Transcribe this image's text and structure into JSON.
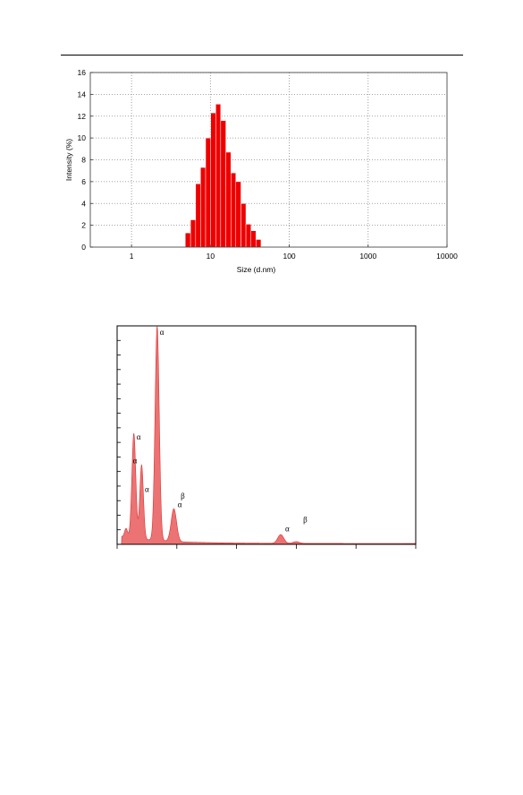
{
  "chart_data": [
    {
      "type": "bar",
      "xlabel": "Size (d.nm)",
      "ylabel": "Intensity (%)",
      "x_scale": "log",
      "xlim": [
        0.3,
        10000
      ],
      "ylim": [
        0,
        16
      ],
      "x_ticks": [
        {
          "value": 1,
          "label": "1"
        },
        {
          "value": 10,
          "label": "10"
        },
        {
          "value": 100,
          "label": "100"
        },
        {
          "value": 1000,
          "label": "1000"
        },
        {
          "value": 10000,
          "label": "10000"
        }
      ],
      "y_ticks": [
        {
          "value": 0,
          "label": "0"
        },
        {
          "value": 2,
          "label": "2"
        },
        {
          "value": 4,
          "label": "4"
        },
        {
          "value": 6,
          "label": "6"
        },
        {
          "value": 8,
          "label": "8"
        },
        {
          "value": 10,
          "label": "10"
        },
        {
          "value": 12,
          "label": "12"
        },
        {
          "value": 14,
          "label": "14"
        },
        {
          "value": 16,
          "label": "16"
        }
      ],
      "grid": true,
      "color": "#ee0000",
      "bins": [
        {
          "from": 4.8,
          "to": 5.6,
          "value": 1.3
        },
        {
          "from": 5.6,
          "to": 6.5,
          "value": 2.5
        },
        {
          "from": 6.5,
          "to": 7.5,
          "value": 5.8
        },
        {
          "from": 7.5,
          "to": 8.7,
          "value": 7.3
        },
        {
          "from": 8.7,
          "to": 10.1,
          "value": 10.0
        },
        {
          "from": 10.1,
          "to": 11.7,
          "value": 12.3
        },
        {
          "from": 11.7,
          "to": 13.5,
          "value": 13.1
        },
        {
          "from": 13.5,
          "to": 15.7,
          "value": 11.6
        },
        {
          "from": 15.7,
          "to": 18.2,
          "value": 8.7
        },
        {
          "from": 18.2,
          "to": 21.0,
          "value": 6.8
        },
        {
          "from": 21.0,
          "to": 24.4,
          "value": 6.0
        },
        {
          "from": 24.4,
          "to": 28.2,
          "value": 4.0
        },
        {
          "from": 28.2,
          "to": 32.7,
          "value": 2.1
        },
        {
          "from": 32.7,
          "to": 37.8,
          "value": 1.5
        },
        {
          "from": 37.8,
          "to": 43.8,
          "value": 0.7
        }
      ]
    },
    {
      "type": "area",
      "xlim": [
        0,
        100
      ],
      "ylim": [
        0,
        100
      ],
      "x_tick_count": 5,
      "y_tick_count": 15,
      "color": "#e85a5a",
      "peaks": [
        {
          "x": 3,
          "height": 4,
          "width": 0.5
        },
        {
          "x": 5.6,
          "height": 48,
          "width": 0.65
        },
        {
          "x": 8.2,
          "height": 34,
          "width": 0.6
        },
        {
          "x": 13.4,
          "height": 98,
          "width": 0.7
        },
        {
          "x": 19,
          "height": 15,
          "width": 0.9
        },
        {
          "x": 54.8,
          "height": 4,
          "width": 1.0
        },
        {
          "x": 60,
          "height": 0.8,
          "width": 1.0
        }
      ],
      "annotations": [
        {
          "text": "α",
          "x": 15,
          "y": 96
        },
        {
          "text": "α",
          "x": 7.2,
          "y": 48
        },
        {
          "text": "α",
          "x": 6.0,
          "y": 37
        },
        {
          "text": "α",
          "x": 10.0,
          "y": 24
        },
        {
          "text": "β",
          "x": 22.0,
          "y": 21
        },
        {
          "text": "α",
          "x": 21.0,
          "y": 17
        },
        {
          "text": "α",
          "x": 57.0,
          "y": 6
        },
        {
          "text": "β",
          "x": 63.0,
          "y": 10
        }
      ]
    }
  ]
}
